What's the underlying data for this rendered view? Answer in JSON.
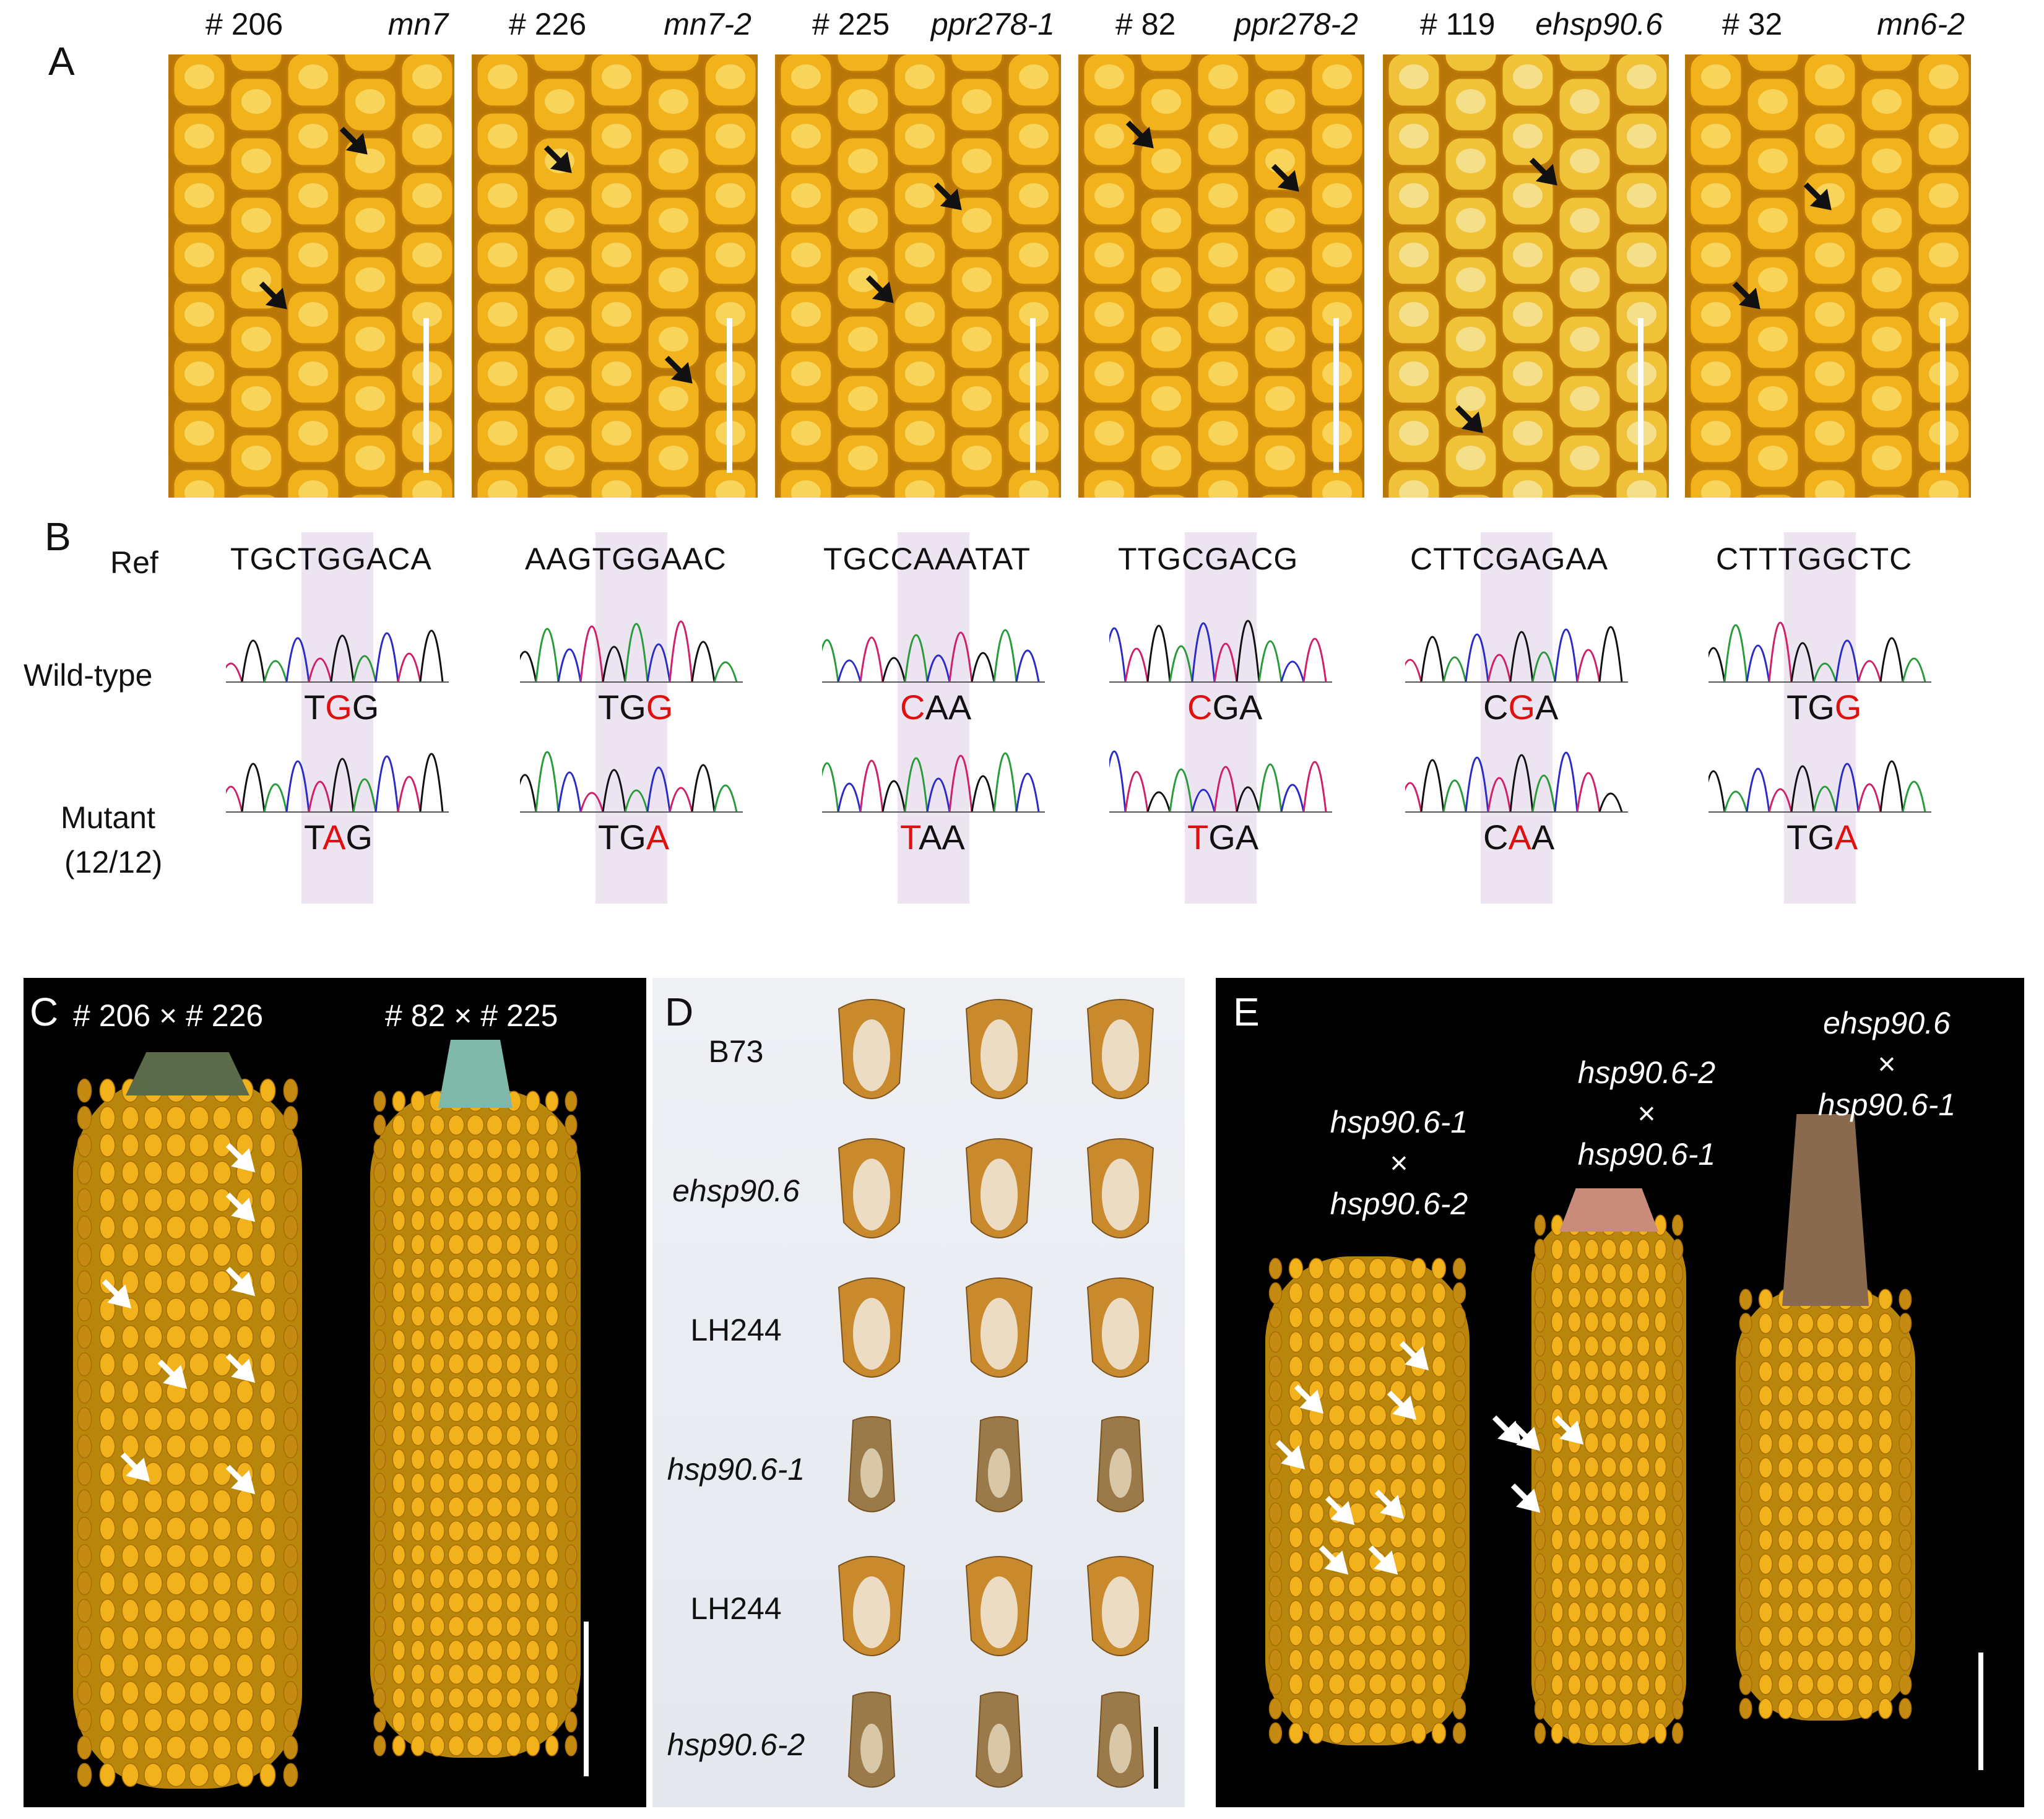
{
  "panels": {
    "A": {
      "letter": "A"
    },
    "B": {
      "letter": "B"
    },
    "C": {
      "letter": "C"
    },
    "D": {
      "letter": "D"
    },
    "E": {
      "letter": "E"
    }
  },
  "panelA": {
    "photos": [
      {
        "id": "# 206",
        "allele": "mn7"
      },
      {
        "id": "# 226",
        "allele": "mn7-2"
      },
      {
        "id": "# 225",
        "allele": "ppr278-1"
      },
      {
        "id": "# 82",
        "allele": "ppr278-2"
      },
      {
        "id": "# 119",
        "allele": "ehsp90.6"
      },
      {
        "id": "# 32",
        "allele": "mn6-2"
      }
    ]
  },
  "panelB": {
    "row_labels": {
      "ref": "Ref",
      "wild": "Wild-type",
      "mutant": "Mutant",
      "mutant_count": "(12/12)"
    },
    "columns": [
      {
        "ref": "TGCTGGACA",
        "wt": [
          "T",
          "G",
          "G"
        ],
        "wt_red": 1,
        "mut": [
          "T",
          "A",
          "G"
        ],
        "mut_red": 1
      },
      {
        "ref": "AAGTGGAAC",
        "wt": [
          "T",
          "G",
          "G"
        ],
        "wt_red": 2,
        "mut": [
          "T",
          "G",
          "A"
        ],
        "mut_red": 2
      },
      {
        "ref": "TGCCAAATAT",
        "wt": [
          "C",
          "A",
          "A"
        ],
        "wt_red": 0,
        "mut": [
          "T",
          "A",
          "A"
        ],
        "mut_red": 0
      },
      {
        "ref": "TTGCGACG",
        "wt": [
          "C",
          "G",
          "A"
        ],
        "wt_red": 0,
        "mut": [
          "T",
          "G",
          "A"
        ],
        "mut_red": 0
      },
      {
        "ref": "CTTCGAGAA",
        "wt": [
          "C",
          "G",
          "A"
        ],
        "wt_red": 1,
        "mut": [
          "C",
          "A",
          "A"
        ],
        "mut_red": 1
      },
      {
        "ref": "CTTTGGCTC",
        "wt": [
          "T",
          "G",
          "G"
        ],
        "wt_red": 2,
        "mut": [
          "T",
          "G",
          "A"
        ],
        "mut_red": 2
      }
    ]
  },
  "panelC": {
    "left": "# 206 × # 226",
    "right": "# 82 × # 225"
  },
  "panelD": {
    "rows": [
      "B73",
      "ehsp90.6",
      "LH244",
      "hsp90.6-1",
      "LH244",
      "hsp90.6-2"
    ],
    "italic": [
      false,
      true,
      false,
      true,
      false,
      true
    ]
  },
  "panelE": {
    "crosses": [
      {
        "line1": "hsp90.6-1",
        "x": "×",
        "line2": "hsp90.6-2"
      },
      {
        "line1": "hsp90.6-2",
        "x": "×",
        "line2": "hsp90.6-1"
      },
      {
        "line1": "ehsp90.6",
        "x": "×",
        "line2": "hsp90.6-1"
      }
    ]
  },
  "colors": {
    "kernel": "#f2b21b",
    "kernel_light": "#f8d45a",
    "kernel_dark": "#c07a08",
    "highlight": "#ece4f0",
    "trace_A": "#2a9b3a",
    "trace_C": "#2b2bc8",
    "trace_G": "#111111",
    "trace_T": "#d0206a",
    "mutation_red": "#e01010"
  }
}
